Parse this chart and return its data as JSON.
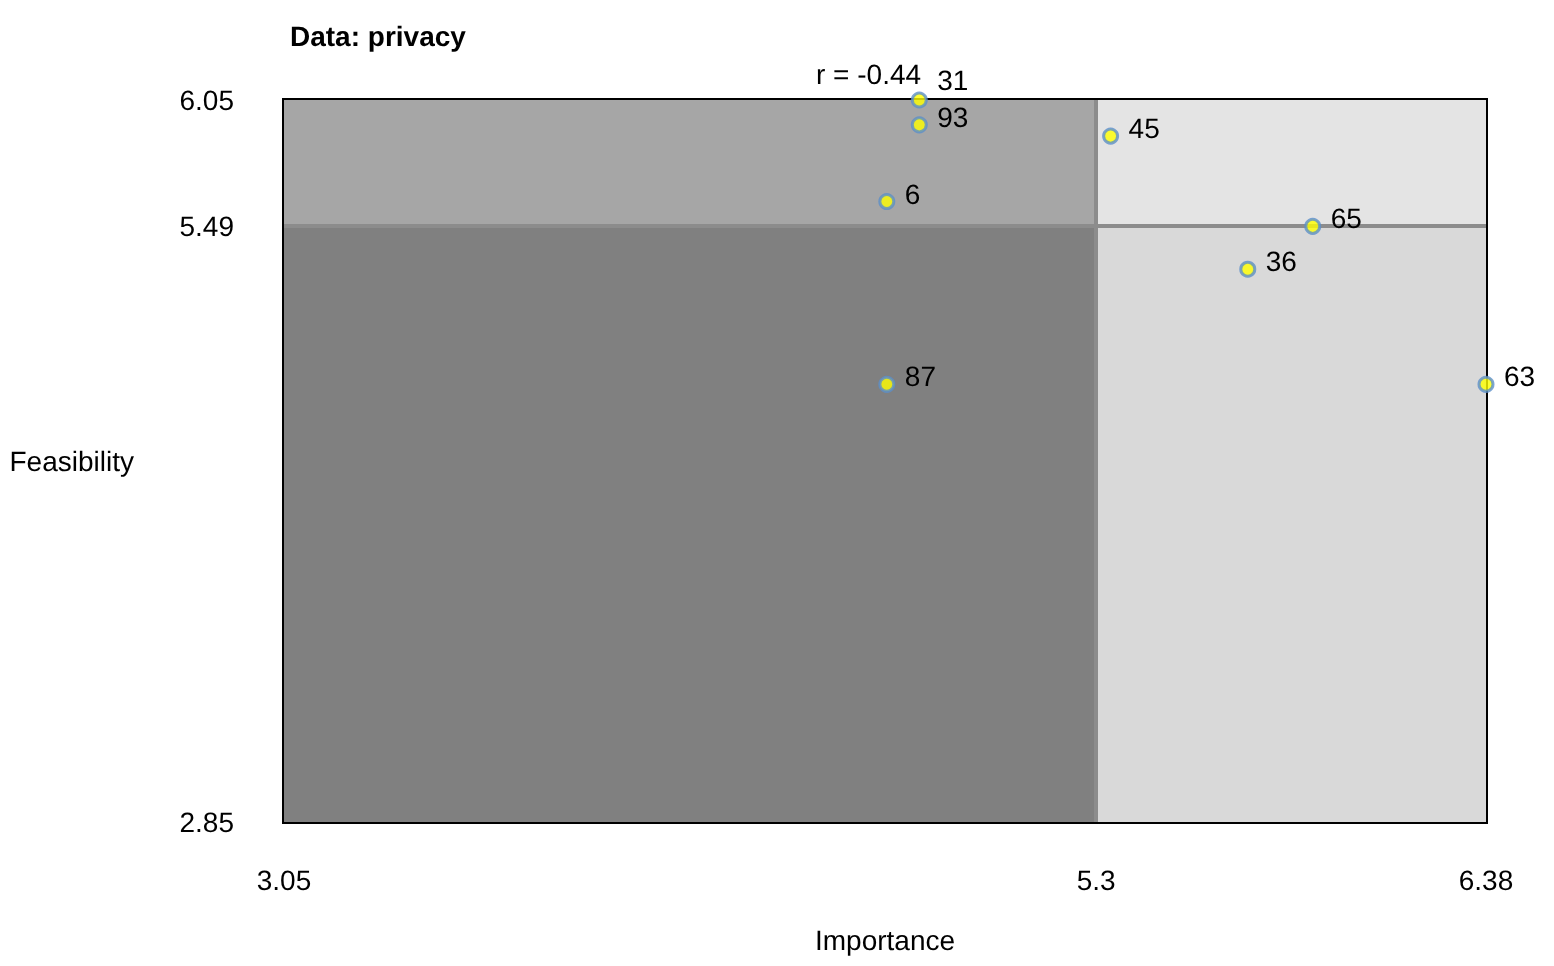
{
  "chart_data": {
    "type": "scatter",
    "title": "Data: privacy",
    "xlabel": "Importance",
    "ylabel": "Feasibility",
    "annotations": [
      "r = -0.44",
      {
        "text": "31",
        "x": 4.81,
        "y": 6.05
      },
      {
        "text": "93",
        "x": 4.81,
        "y": 5.94
      },
      {
        "text": "45",
        "x": 5.34,
        "y": 5.89
      },
      {
        "text": "6",
        "x": 4.72,
        "y": 5.6
      },
      {
        "text": "65",
        "x": 5.9,
        "y": 5.49
      },
      {
        "text": "36",
        "x": 5.72,
        "y": 5.3
      },
      {
        "text": "87",
        "x": 4.72,
        "y": 4.79
      },
      {
        "text": "63",
        "x": 6.38,
        "y": 4.79
      }
    ],
    "x": [
      4.81,
      4.81,
      5.34,
      4.72,
      5.9,
      5.72,
      4.72,
      6.38
    ],
    "series": [
      {
        "color": "#ffff00",
        "values": [
          6.05,
          5.94,
          5.89,
          5.6,
          5.49,
          5.3,
          4.79,
          4.79
        ]
      }
    ],
    "xlim": [
      3.05,
      6.38
    ],
    "xticks": [
      3.05,
      5.3,
      6.38
    ],
    "ylim": [
      2.85,
      6.05
    ],
    "yticks": [
      2.85,
      5.49,
      6.05
    ],
    "ref_lines": [
      {
        "axis": "x",
        "value": 5.3,
        "color": "#8c8c8c"
      },
      {
        "axis": "y",
        "value": 5.49,
        "color": "#8c8c8c"
      }
    ],
    "bands": [
      {
        "axis": "x",
        "from": 3.05,
        "to": 5.3,
        "color": "#808080"
      },
      {
        "axis": "x",
        "from": 5.3,
        "to": 6.38,
        "color": "#d9d9d9"
      },
      {
        "axis": "y",
        "from": 5.49,
        "to": 6.05,
        "color": "#ffffff"
      }
    ],
    "marker": "circle",
    "grid": false
  }
}
